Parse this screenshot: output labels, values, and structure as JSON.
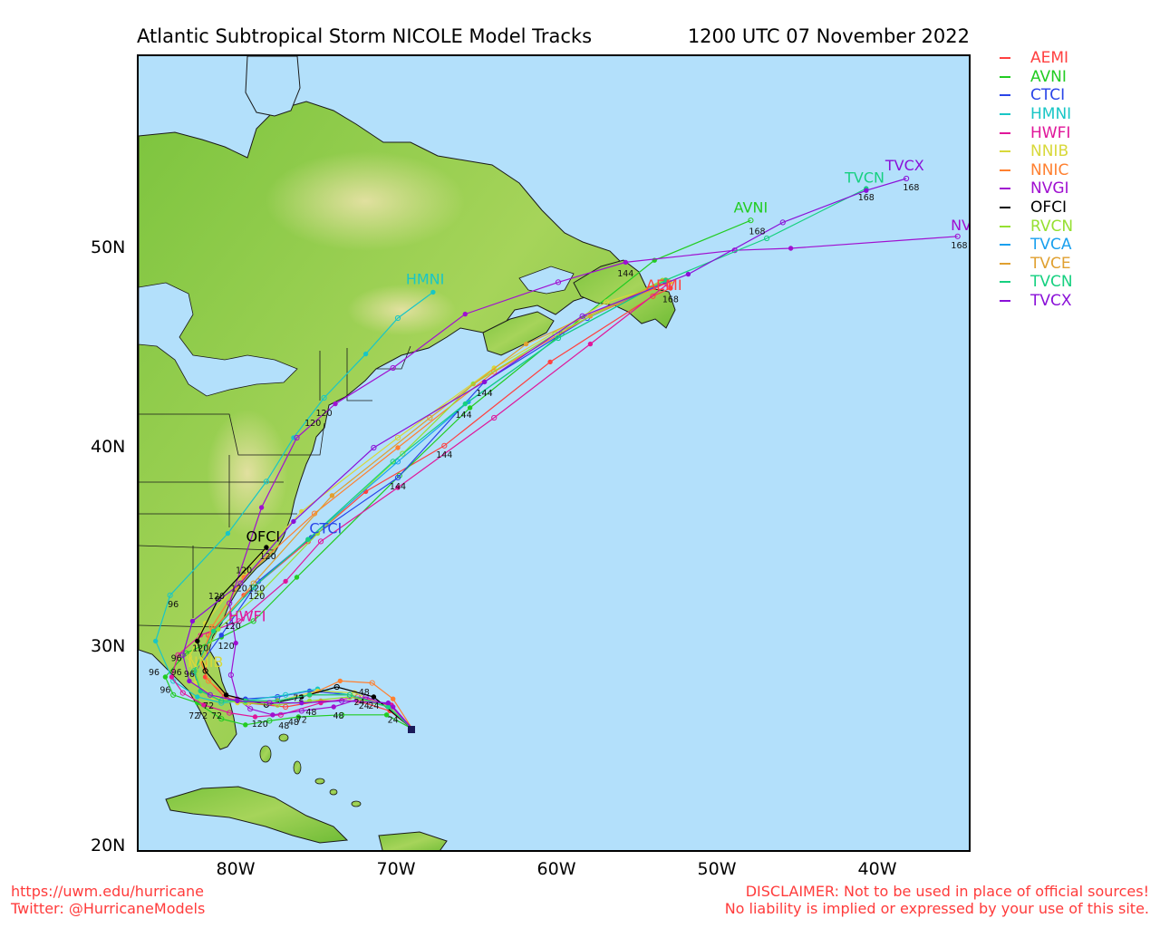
{
  "header": {
    "title": "Atlantic Subtropical Storm NICOLE Model Tracks",
    "datetime": "1200 UTC 07 November 2022"
  },
  "axes": {
    "lat_labels": [
      "50N",
      "40N",
      "30N",
      "20N"
    ],
    "lon_labels": [
      "80W",
      "70W",
      "60W",
      "50W",
      "40W"
    ]
  },
  "legend": [
    {
      "name": "AEMI",
      "color": "#ff4040"
    },
    {
      "name": "AVNI",
      "color": "#22cc22"
    },
    {
      "name": "CTCI",
      "color": "#2a45e8"
    },
    {
      "name": "HMNI",
      "color": "#19c6c6"
    },
    {
      "name": "HWFI",
      "color": "#e0169a"
    },
    {
      "name": "NNIB",
      "color": "#d8d83a"
    },
    {
      "name": "NNIC",
      "color": "#ff8030"
    },
    {
      "name": "NVGI",
      "color": "#a010d0"
    },
    {
      "name": "OFCI",
      "color": "#000000"
    },
    {
      "name": "RVCN",
      "color": "#96e032"
    },
    {
      "name": "TVCA",
      "color": "#1aa0ee"
    },
    {
      "name": "TVCE",
      "color": "#e0a030"
    },
    {
      "name": "TVCN",
      "color": "#16d080"
    },
    {
      "name": "TVCX",
      "color": "#8a10d8"
    }
  ],
  "map_labels": [
    {
      "text": "HMNI",
      "model": "HMNI",
      "lon": -68.3,
      "lat": 48.2
    },
    {
      "text": "AVNI",
      "model": "AVNI",
      "lon": -48.0,
      "lat": 51.8
    },
    {
      "text": "TVCN",
      "model": "TVCN",
      "lon": -40.9,
      "lat": 53.3
    },
    {
      "text": "TVCX",
      "model": "TVCX",
      "lon": -38.4,
      "lat": 53.9
    },
    {
      "text": "NVGI",
      "model": "NVGI",
      "lon": -34.4,
      "lat": 50.9
    },
    {
      "text": "AEMI",
      "model": "AEMI",
      "lon": -53.4,
      "lat": 47.9
    },
    {
      "text": "OFCI",
      "model": "OFCI",
      "lon": -78.4,
      "lat": 35.3
    },
    {
      "text": "CTCI",
      "model": "CTCI",
      "lon": -74.5,
      "lat": 35.7
    },
    {
      "text": "HWFI",
      "model": "HWFI",
      "lon": -79.4,
      "lat": 31.3
    },
    {
      "text": "NNIB",
      "model": "NNIB",
      "lon": -82.0,
      "lat": 29.0
    }
  ],
  "tracks": [
    {
      "model": "AEMI",
      "points": [
        [
          -69.1,
          25.9
        ],
        [
          -70.5,
          26.8
        ],
        [
          -72.5,
          27.3
        ],
        [
          -74.8,
          27.3
        ],
        [
          -77,
          27.0
        ],
        [
          -79.5,
          27.2
        ],
        [
          -80.8,
          27.5
        ],
        [
          -82,
          28.5
        ],
        [
          -81.8,
          30.6
        ],
        [
          -79.6,
          32.6
        ],
        [
          -75.6,
          35.3
        ],
        [
          -72,
          37.8
        ],
        [
          -67.1,
          40.1
        ],
        [
          -60.5,
          44.3
        ],
        [
          -54.1,
          47.6
        ],
        [
          -53,
          48.0
        ]
      ]
    },
    {
      "model": "AVNI",
      "points": [
        [
          -69.1,
          25.9
        ],
        [
          -70.7,
          26.6
        ],
        [
          -73.5,
          26.6
        ],
        [
          -76.2,
          26.5
        ],
        [
          -78,
          26.3
        ],
        [
          -79.5,
          26.1
        ],
        [
          -81,
          26.4
        ],
        [
          -82.5,
          27.2
        ],
        [
          -84,
          27.6
        ],
        [
          -84.5,
          28.5
        ],
        [
          -83.2,
          29.7
        ],
        [
          -81,
          30.5
        ],
        [
          -79,
          31.3
        ],
        [
          -76.3,
          33.5
        ],
        [
          -69.9,
          38.6
        ],
        [
          -65.5,
          42.0
        ],
        [
          -59.8,
          45.7
        ],
        [
          -54,
          49.4
        ],
        [
          -48,
          51.4
        ]
      ]
    },
    {
      "model": "CTCI",
      "points": [
        [
          -69.1,
          25.9
        ],
        [
          -70.6,
          27.0
        ],
        [
          -73,
          27.6
        ],
        [
          -75.5,
          27.8
        ],
        [
          -77.5,
          27.5
        ],
        [
          -79.5,
          27.4
        ],
        [
          -81.0,
          27.3
        ],
        [
          -82.3,
          27.8
        ],
        [
          -82.7,
          28.7
        ],
        [
          -81,
          30.6
        ],
        [
          -78.7,
          33.3
        ],
        [
          -75.4,
          35.5
        ],
        [
          -70,
          38.5
        ],
        [
          -64.6,
          43.3
        ],
        [
          -58.2,
          46.5
        ],
        [
          -53.3,
          48.3
        ]
      ]
    },
    {
      "model": "HMNI",
      "points": [
        [
          -69.1,
          25.9
        ],
        [
          -70.5,
          27.0
        ],
        [
          -73,
          27.6
        ],
        [
          -75,
          27.9
        ],
        [
          -77,
          27.6
        ],
        [
          -79.5,
          27.3
        ],
        [
          -81,
          27.2
        ],
        [
          -82.5,
          27.5
        ],
        [
          -84,
          28.3
        ],
        [
          -85.1,
          30.3
        ],
        [
          -84.2,
          32.6
        ],
        [
          -80.6,
          35.7
        ],
        [
          -78.2,
          38.3
        ],
        [
          -76.5,
          40.5
        ],
        [
          -74.6,
          42.5
        ],
        [
          -72,
          44.7
        ],
        [
          -70,
          46.5
        ],
        [
          -67.8,
          47.8
        ]
      ]
    },
    {
      "model": "HWFI",
      "points": [
        [
          -69.1,
          25.9
        ],
        [
          -70.4,
          27.1
        ],
        [
          -72.5,
          27.5
        ],
        [
          -74.8,
          27.2
        ],
        [
          -77.3,
          26.6
        ],
        [
          -78.9,
          26.5
        ],
        [
          -80.5,
          26.7
        ],
        [
          -82.1,
          27.1
        ],
        [
          -83.4,
          27.7
        ],
        [
          -84.1,
          28.5
        ],
        [
          -83.7,
          29.6
        ],
        [
          -82.3,
          30.6
        ],
        [
          -79.9,
          31.3
        ],
        [
          -77,
          33.3
        ],
        [
          -74.8,
          35.3
        ],
        [
          -70,
          38.0
        ],
        [
          -64,
          41.5
        ],
        [
          -58,
          45.2
        ],
        [
          -53.2,
          48.2
        ]
      ]
    },
    {
      "model": "NNIB",
      "points": [
        [
          -69.1,
          25.9
        ],
        [
          -70.5,
          27.0
        ],
        [
          -72.7,
          27.7
        ],
        [
          -75,
          27.8
        ],
        [
          -77.5,
          27.3
        ],
        [
          -80,
          27.2
        ],
        [
          -81.5,
          27.5
        ],
        [
          -82.6,
          28.2
        ],
        [
          -83,
          29.5
        ],
        [
          -82,
          31.2
        ],
        [
          -79.5,
          33.8
        ],
        [
          -76,
          36.8
        ],
        [
          -70,
          40.5
        ],
        [
          -64,
          44
        ],
        [
          -57,
          47.3
        ],
        [
          -53,
          48.3
        ]
      ]
    },
    {
      "model": "NNIC",
      "points": [
        [
          -69.1,
          25.9
        ],
        [
          -70.3,
          27.4
        ],
        [
          -71.6,
          28.2
        ],
        [
          -73.6,
          28.3
        ],
        [
          -75.5,
          27.6
        ],
        [
          -77.5,
          27.3
        ],
        [
          -79.3,
          27.2
        ],
        [
          -80.7,
          27.6
        ],
        [
          -81.8,
          28.3
        ],
        [
          -82.3,
          29.3
        ],
        [
          -81.6,
          31.0
        ],
        [
          -79.6,
          33.5
        ],
        [
          -75.2,
          36.7
        ],
        [
          -70,
          40.0
        ],
        [
          -64,
          43.8
        ],
        [
          -58,
          46.6
        ],
        [
          -53.1,
          48.3
        ]
      ]
    },
    {
      "model": "NVGI",
      "points": [
        [
          -69.1,
          25.9
        ],
        [
          -70.3,
          27.0
        ],
        [
          -72,
          27.5
        ],
        [
          -74,
          27.0
        ],
        [
          -76,
          26.8
        ],
        [
          -77.8,
          26.6
        ],
        [
          -79.2,
          26.9
        ],
        [
          -80,
          27.4
        ],
        [
          -80.4,
          28.6
        ],
        [
          -80.1,
          30.2
        ],
        [
          -80.5,
          32.2
        ],
        [
          -78.5,
          37.0
        ],
        [
          -76.3,
          40.5
        ],
        [
          -73.9,
          42.2
        ],
        [
          -70.3,
          44.0
        ],
        [
          -65.8,
          46.7
        ],
        [
          -60,
          48.3
        ],
        [
          -55.8,
          49.3
        ],
        [
          -49,
          49.9
        ],
        [
          -45.5,
          50.0
        ],
        [
          -35.1,
          50.6
        ]
      ]
    },
    {
      "model": "OFCI",
      "points": [
        [
          -69.1,
          25.9
        ],
        [
          -71.5,
          27.5
        ],
        [
          -73.8,
          28.0
        ],
        [
          -76,
          27.5
        ],
        [
          -78.2,
          27.1
        ],
        [
          -80.7,
          27.6
        ],
        [
          -82,
          28.8
        ],
        [
          -82.5,
          30.3
        ],
        [
          -81.2,
          32.4
        ],
        [
          -78.2,
          35.0
        ]
      ]
    },
    {
      "model": "RVCN",
      "points": [
        [
          -69.1,
          25.9
        ],
        [
          -70.6,
          27.0
        ],
        [
          -73,
          27.5
        ],
        [
          -75.5,
          27.3
        ],
        [
          -77.5,
          27.1
        ],
        [
          -79.5,
          27.2
        ],
        [
          -81,
          27.3
        ],
        [
          -82.2,
          27.8
        ],
        [
          -82.6,
          28.8
        ],
        [
          -81.2,
          30.9
        ],
        [
          -78.6,
          32.7
        ],
        [
          -75,
          35.7
        ],
        [
          -69.7,
          39.7
        ],
        [
          -65.3,
          43.2
        ],
        [
          -60.2,
          45.7
        ],
        [
          -53.5,
          48.4
        ]
      ]
    },
    {
      "model": "TVCA",
      "points": [
        [
          -69.1,
          25.9
        ],
        [
          -70.6,
          27.0
        ],
        [
          -73,
          27.6
        ],
        [
          -75.5,
          27.6
        ],
        [
          -77.5,
          27.3
        ],
        [
          -79.5,
          27.3
        ],
        [
          -81,
          27.3
        ],
        [
          -82.3,
          27.8
        ],
        [
          -82.7,
          28.8
        ],
        [
          -81.5,
          30.8
        ],
        [
          -79,
          33.0
        ],
        [
          -75.6,
          35.4
        ],
        [
          -70,
          39.3
        ],
        [
          -65.6,
          42.3
        ],
        [
          -60,
          45.5
        ],
        [
          -53.3,
          48.4
        ]
      ]
    },
    {
      "model": "TVCE",
      "points": [
        [
          -69.1,
          25.9
        ],
        [
          -70.6,
          27.0
        ],
        [
          -73,
          27.6
        ],
        [
          -75.5,
          27.6
        ],
        [
          -77.5,
          27.3
        ],
        [
          -79.5,
          27.3
        ],
        [
          -81,
          27.3
        ],
        [
          -82.3,
          27.8
        ],
        [
          -82.7,
          28.8
        ],
        [
          -81.5,
          30.8
        ],
        [
          -79,
          33.2
        ],
        [
          -74.1,
          37.6
        ],
        [
          -68,
          41.5
        ],
        [
          -62,
          45.2
        ],
        [
          -53.3,
          48.4
        ]
      ]
    },
    {
      "model": "TVCN",
      "points": [
        [
          -69.1,
          25.9
        ],
        [
          -70.6,
          27.0
        ],
        [
          -73,
          27.6
        ],
        [
          -75.5,
          27.6
        ],
        [
          -77.5,
          27.3
        ],
        [
          -79.5,
          27.3
        ],
        [
          -81,
          27.3
        ],
        [
          -82.3,
          27.8
        ],
        [
          -82.7,
          28.8
        ],
        [
          -81.5,
          30.8
        ],
        [
          -79,
          33.0
        ],
        [
          -75.6,
          35.4
        ],
        [
          -70.3,
          39.3
        ],
        [
          -65.8,
          42.2
        ],
        [
          -60,
          45.5
        ],
        [
          -53.3,
          48.4
        ],
        [
          -47,
          50.5
        ],
        [
          -40.8,
          53.0
        ]
      ]
    },
    {
      "model": "TVCX",
      "points": [
        [
          -69.1,
          25.9
        ],
        [
          -70.6,
          27.2
        ],
        [
          -73.5,
          27.3
        ],
        [
          -76,
          27.2
        ],
        [
          -78,
          27.2
        ],
        [
          -80,
          27.3
        ],
        [
          -81.7,
          27.6
        ],
        [
          -83,
          28.3
        ],
        [
          -83.4,
          29.6
        ],
        [
          -82.8,
          31.3
        ],
        [
          -79.8,
          33.2
        ],
        [
          -76.5,
          36.3
        ],
        [
          -71.5,
          40.0
        ],
        [
          -64.6,
          43.3
        ],
        [
          -58.5,
          46.6
        ],
        [
          -51.9,
          48.7
        ],
        [
          -46,
          51.3
        ],
        [
          -40.8,
          52.9
        ],
        [
          -38.3,
          53.5
        ]
      ]
    }
  ],
  "hour_labels": [
    {
      "text": "168",
      "lon": -47.6,
      "lat": 50.7
    },
    {
      "text": "168",
      "lon": -40.8,
      "lat": 52.4
    },
    {
      "text": "168",
      "lon": -38.0,
      "lat": 52.9
    },
    {
      "text": "168",
      "lon": -35.0,
      "lat": 50.0
    },
    {
      "text": "168",
      "lon": -53.0,
      "lat": 47.3
    },
    {
      "text": "144",
      "lon": -55.8,
      "lat": 48.6
    },
    {
      "text": "144",
      "lon": -64.6,
      "lat": 42.6
    },
    {
      "text": "144",
      "lon": -65.9,
      "lat": 41.5
    },
    {
      "text": "144",
      "lon": -67.1,
      "lat": 39.5
    },
    {
      "text": "144",
      "lon": -70.0,
      "lat": 37.9
    },
    {
      "text": "120",
      "lon": -74.6,
      "lat": 41.6
    },
    {
      "text": "120",
      "lon": -75.3,
      "lat": 41.1
    },
    {
      "text": "120",
      "lon": -78.1,
      "lat": 34.4
    },
    {
      "text": "120",
      "lon": -79.6,
      "lat": 33.7
    },
    {
      "text": "120",
      "lon": -78.8,
      "lat": 32.8
    },
    {
      "text": "120",
      "lon": -79.9,
      "lat": 32.8
    },
    {
      "text": "120",
      "lon": -81.3,
      "lat": 32.4
    },
    {
      "text": "120",
      "lon": -78.8,
      "lat": 32.4
    },
    {
      "text": "120",
      "lon": -80.3,
      "lat": 30.9
    },
    {
      "text": "120",
      "lon": -80.7,
      "lat": 29.9
    },
    {
      "text": "120",
      "lon": -82.3,
      "lat": 29.8
    },
    {
      "text": "120",
      "lon": -78.6,
      "lat": 26.0
    },
    {
      "text": "96",
      "lon": -84.0,
      "lat": 32.0
    },
    {
      "text": "96",
      "lon": -83.8,
      "lat": 29.3
    },
    {
      "text": "96",
      "lon": -83.8,
      "lat": 28.6
    },
    {
      "text": "96",
      "lon": -85.2,
      "lat": 28.6
    },
    {
      "text": "96",
      "lon": -84.5,
      "lat": 27.7
    },
    {
      "text": "96",
      "lon": -83.0,
      "lat": 28.5
    },
    {
      "text": "72",
      "lon": -82.7,
      "lat": 26.4
    },
    {
      "text": "72",
      "lon": -82.2,
      "lat": 26.4
    },
    {
      "text": "72",
      "lon": -81.3,
      "lat": 26.4
    },
    {
      "text": "72",
      "lon": -81.8,
      "lat": 26.9
    },
    {
      "text": "72",
      "lon": -76.2,
      "lat": 27.3
    },
    {
      "text": "72",
      "lon": -76.0,
      "lat": 26.2
    },
    {
      "text": "48",
      "lon": -73.7,
      "lat": 26.4
    },
    {
      "text": "48",
      "lon": -75.4,
      "lat": 26.6
    },
    {
      "text": "48",
      "lon": -76.5,
      "lat": 26.1
    },
    {
      "text": "48",
      "lon": -77.1,
      "lat": 25.9
    },
    {
      "text": "48",
      "lon": -72.1,
      "lat": 27.6
    },
    {
      "text": "24",
      "lon": -70.3,
      "lat": 26.2
    },
    {
      "text": "24",
      "lon": -72.1,
      "lat": 26.9
    },
    {
      "text": "24",
      "lon": -71.5,
      "lat": 26.9
    },
    {
      "text": "24",
      "lon": -72.4,
      "lat": 27.1
    }
  ],
  "footer": {
    "url": "https://uwm.edu/hurricane",
    "twitter": "Twitter: @HurricaneModels",
    "disclaimer1": "DISCLAIMER: Not to be used in place of official sources!",
    "disclaimer2": "No liability is implied or expressed by your use of this site."
  },
  "colors": {
    "ocean": "#b3e0fb",
    "land_low": "#7cc43e",
    "land_high": "#e9e2a8"
  }
}
